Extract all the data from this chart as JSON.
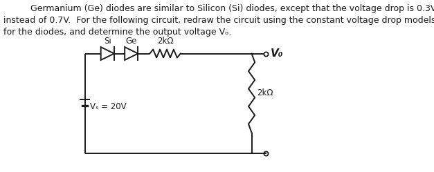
{
  "text_lines": [
    "Germanium (Ge) diodes are similar to Silicon (Si) diodes, except that the voltage drop is 0.3V",
    "instead of 0.7V.  For the following circuit, redraw the circuit using the constant voltage drop models",
    "for the diodes, and determine the output voltage Vₒ."
  ],
  "label_Si": "Si",
  "label_Ge": "Ge",
  "label_2kohm_top": "2kΩ",
  "label_2kohm_side": "2kΩ",
  "label_Vs": "Vₛ = 20V",
  "label_Vo": "V₀",
  "background_color": "#ffffff",
  "line_color": "#1a1a1a",
  "font_size_text": 9.0,
  "font_size_label": 8.5,
  "font_size_Vo": 11
}
